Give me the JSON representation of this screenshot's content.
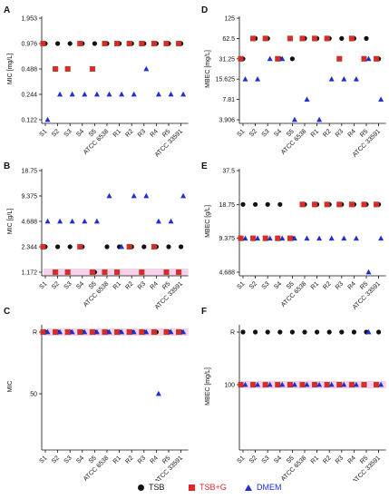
{
  "colors": {
    "tsb": "#111111",
    "tsbg": "#e3252c",
    "tsbg_edge": "#8b5a2b",
    "dmem": "#1f2fd1",
    "shade": "#f6d2ea"
  },
  "legend": {
    "tsb": "TSB",
    "tsbg": "TSB+G",
    "dmem": "DMEM"
  },
  "chart_data": [
    {
      "type": "scatter",
      "panel": "A",
      "ylabel": "MIC [mg/L]",
      "scale": "log2",
      "ytick_labels": [
        "0.122",
        "0.244",
        "0.488",
        "0.976",
        "1.953"
      ],
      "ylim": [
        0.122,
        1.953
      ],
      "categories": [
        "S1",
        "S2",
        "S3",
        "S4",
        "S5",
        "ATCC 6538",
        "R1",
        "R2",
        "R3",
        "R4",
        "R5",
        "ATCC 33591"
      ],
      "series": [
        {
          "name": "TSB",
          "values": [
            0.976,
            0.976,
            0.976,
            0.976,
            0.976,
            0.976,
            0.976,
            0.976,
            0.976,
            0.976,
            0.976,
            0.976
          ]
        },
        {
          "name": "TSB+G",
          "values": [
            0.976,
            0.488,
            0.488,
            0.976,
            0.488,
            0.976,
            0.976,
            0.976,
            0.976,
            0.976,
            0.976,
            0.976
          ]
        },
        {
          "name": "DMEM",
          "values": [
            0.122,
            0.244,
            0.244,
            0.244,
            0.244,
            0.244,
            0.244,
            0.244,
            0.488,
            0.244,
            0.244,
            0.244
          ]
        }
      ]
    },
    {
      "type": "scatter",
      "panel": "B",
      "ylabel": "MIC [g/L]",
      "scale": "log2",
      "ytick_labels": [
        "1.172",
        "2.344",
        "4.688",
        "9.375",
        "18.75"
      ],
      "ylim": [
        1.172,
        18.75
      ],
      "categories": [
        "S1",
        "S2",
        "S3",
        "S4",
        "S5",
        "ATCC 6538",
        "R1",
        "R2",
        "R3",
        "R4",
        "R5",
        "ATCC 33591"
      ],
      "series": [
        {
          "name": "TSB",
          "values": [
            2.344,
            2.344,
            2.344,
            2.344,
            1.172,
            2.344,
            2.344,
            2.344,
            2.344,
            2.344,
            2.344,
            2.344
          ]
        },
        {
          "name": "TSB+G",
          "values": [
            2.344,
            1.172,
            1.172,
            2.344,
            1.172,
            1.172,
            1.172,
            2.344,
            1.172,
            2.344,
            1.172,
            1.172
          ]
        },
        {
          "name": "DMEM",
          "values": [
            4.688,
            4.688,
            4.688,
            4.688,
            4.688,
            9.375,
            2.344,
            9.375,
            9.375,
            4.688,
            4.688,
            9.375
          ]
        }
      ]
    },
    {
      "type": "scatter",
      "panel": "C",
      "ylabel": "MIC",
      "scale": "categorical",
      "ytick_labels": [
        "50",
        "R"
      ],
      "categories": [
        "S1",
        "S2",
        "S3",
        "S4",
        "S5",
        "ATCC 6538",
        "R1",
        "R2",
        "R3",
        "R4",
        "R5",
        "ATCC 33591"
      ],
      "series": [
        {
          "name": "TSB",
          "values": [
            "R",
            "R",
            "R",
            "R",
            "R",
            "R",
            "R",
            "R",
            "R",
            "R",
            "R",
            "R"
          ]
        },
        {
          "name": "TSB+G",
          "values": [
            "R",
            "R",
            "R",
            "R",
            "R",
            "R",
            "R",
            "R",
            "R",
            "R",
            "R",
            "R"
          ]
        },
        {
          "name": "DMEM",
          "values": [
            "R",
            "R",
            "R",
            "R",
            "R",
            "R",
            "R",
            "R",
            "R",
            "50",
            "R",
            "R"
          ]
        }
      ]
    },
    {
      "type": "scatter",
      "panel": "D",
      "ylabel": "MBEC [mg/L]",
      "scale": "log2",
      "ytick_labels": [
        "3.906",
        "7.81",
        "15.625",
        "31.25",
        "62.5",
        "125"
      ],
      "ylim": [
        3.906,
        125
      ],
      "categories": [
        "S1",
        "S2",
        "S3",
        "S4",
        "S5",
        "ATCC 6538",
        "R1",
        "R2",
        "R3",
        "R4",
        "R5",
        "ATCC 33591"
      ],
      "series": [
        {
          "name": "TSB",
          "values": [
            31.25,
            62.5,
            62.5,
            31.25,
            31.25,
            62.5,
            62.5,
            62.5,
            62.5,
            62.5,
            62.5,
            31.25
          ]
        },
        {
          "name": "TSB+G",
          "values": [
            31.25,
            62.5,
            62.5,
            31.25,
            62.5,
            62.5,
            62.5,
            62.5,
            31.25,
            62.5,
            31.25,
            31.25
          ]
        },
        {
          "name": "DMEM",
          "values": [
            15.625,
            15.625,
            31.25,
            31.25,
            3.906,
            7.81,
            3.906,
            15.625,
            15.625,
            15.625,
            31.25,
            7.81
          ]
        }
      ]
    },
    {
      "type": "scatter",
      "panel": "E",
      "ylabel": "MBEC [g/L]",
      "scale": "log2",
      "ytick_labels": [
        "4.688",
        "9.375",
        "18.75",
        "37.5"
      ],
      "ylim": [
        4.688,
        37.5
      ],
      "categories": [
        "S1",
        "S2",
        "S3",
        "S4",
        "S5",
        "ATCC 6538",
        "R1",
        "R2",
        "R3",
        "R4",
        "R5",
        "ATCC 33591"
      ],
      "series": [
        {
          "name": "TSB",
          "values": [
            18.75,
            18.75,
            18.75,
            18.75,
            9.375,
            18.75,
            18.75,
            18.75,
            18.75,
            18.75,
            18.75,
            18.75
          ]
        },
        {
          "name": "TSB+G",
          "values": [
            9.375,
            9.375,
            9.375,
            9.375,
            9.375,
            18.75,
            18.75,
            18.75,
            18.75,
            18.75,
            18.75,
            18.75
          ]
        },
        {
          "name": "DMEM",
          "values": [
            9.375,
            9.375,
            9.375,
            9.375,
            9.375,
            9.375,
            9.375,
            9.375,
            9.375,
            9.375,
            4.688,
            9.375
          ]
        }
      ]
    },
    {
      "type": "scatter",
      "panel": "F",
      "ylabel": "MBEC [mg/L]",
      "scale": "categorical",
      "ytick_labels": [
        "100",
        "R"
      ],
      "categories": [
        "S1",
        "S2",
        "S3",
        "S4",
        "S5",
        "ATCC 6538",
        "R1",
        "R2",
        "R3",
        "R4",
        "R5",
        "ATCC 33591"
      ],
      "series": [
        {
          "name": "TSB",
          "values": [
            "R",
            "R",
            "R",
            "R",
            "R",
            "R",
            "R",
            "R",
            "R",
            "R",
            "R",
            "R"
          ]
        },
        {
          "name": "TSB+G",
          "values": [
            "100",
            "100",
            "100",
            "100",
            "100",
            "100",
            "100",
            "100",
            "100",
            "100",
            "100",
            "100"
          ]
        },
        {
          "name": "DMEM",
          "values": [
            "100",
            "100",
            "100",
            "100",
            "100",
            "100",
            "100",
            "100",
            "100",
            "100",
            "R",
            "100"
          ]
        }
      ]
    }
  ]
}
